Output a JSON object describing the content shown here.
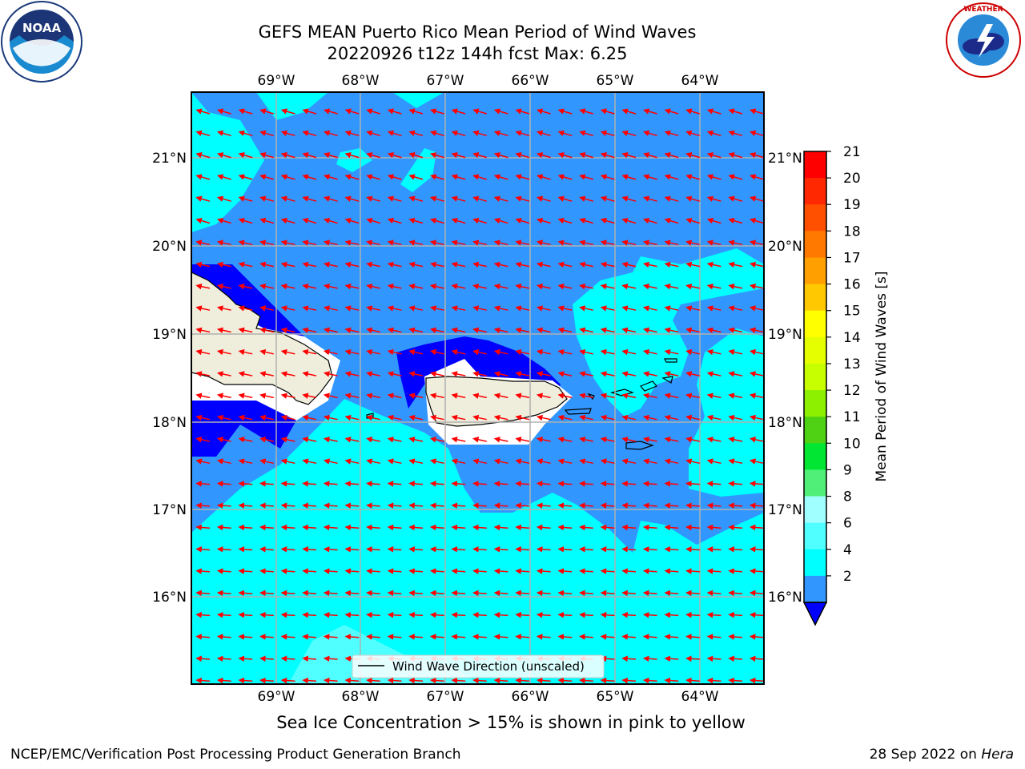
{
  "title": {
    "line1": "GEFS MEAN Puerto Rico Mean Period of Wind Waves",
    "line2": "20220926 t12z 144h fcst   Max: 6.25"
  },
  "map": {
    "lon_labels": [
      "69°W",
      "68°W",
      "67°W",
      "66°W",
      "65°W",
      "64°W"
    ],
    "lat_labels": [
      "21°N",
      "20°N",
      "19°N",
      "18°N",
      "17°N",
      "16°N"
    ],
    "legend_label": "Wind Wave Direction (unscaled)",
    "arrow_color": "#ff0000",
    "land_color": "#efeedd",
    "icons": [
      "noaa-logo",
      "nws-logo"
    ]
  },
  "colorbar": {
    "label": "Mean Period of Wind Waves [s]",
    "ticks": [
      "21",
      "20",
      "19",
      "18",
      "17",
      "16",
      "15",
      "14",
      "13",
      "12",
      "11",
      "10",
      "9",
      "8",
      "6",
      "4",
      "2"
    ],
    "colors": [
      "#ff0000",
      "#ff2800",
      "#ff5000",
      "#ff7800",
      "#ffa000",
      "#ffc800",
      "#ffff00",
      "#e6ff00",
      "#c8ff00",
      "#8cf000",
      "#50d214",
      "#00e632",
      "#50f078",
      "#a0ffff",
      "#50ffff",
      "#00ffff",
      "#3296ff"
    ],
    "extend_color": "#0000ff"
  },
  "caption": "Sea Ice Concentration > 15% is shown in pink to yellow",
  "footer": {
    "left": "NCEP/EMC/Verification Post Processing Product Generation Branch",
    "right_date": "28 Sep 2022 on ",
    "right_host": "Hera"
  }
}
